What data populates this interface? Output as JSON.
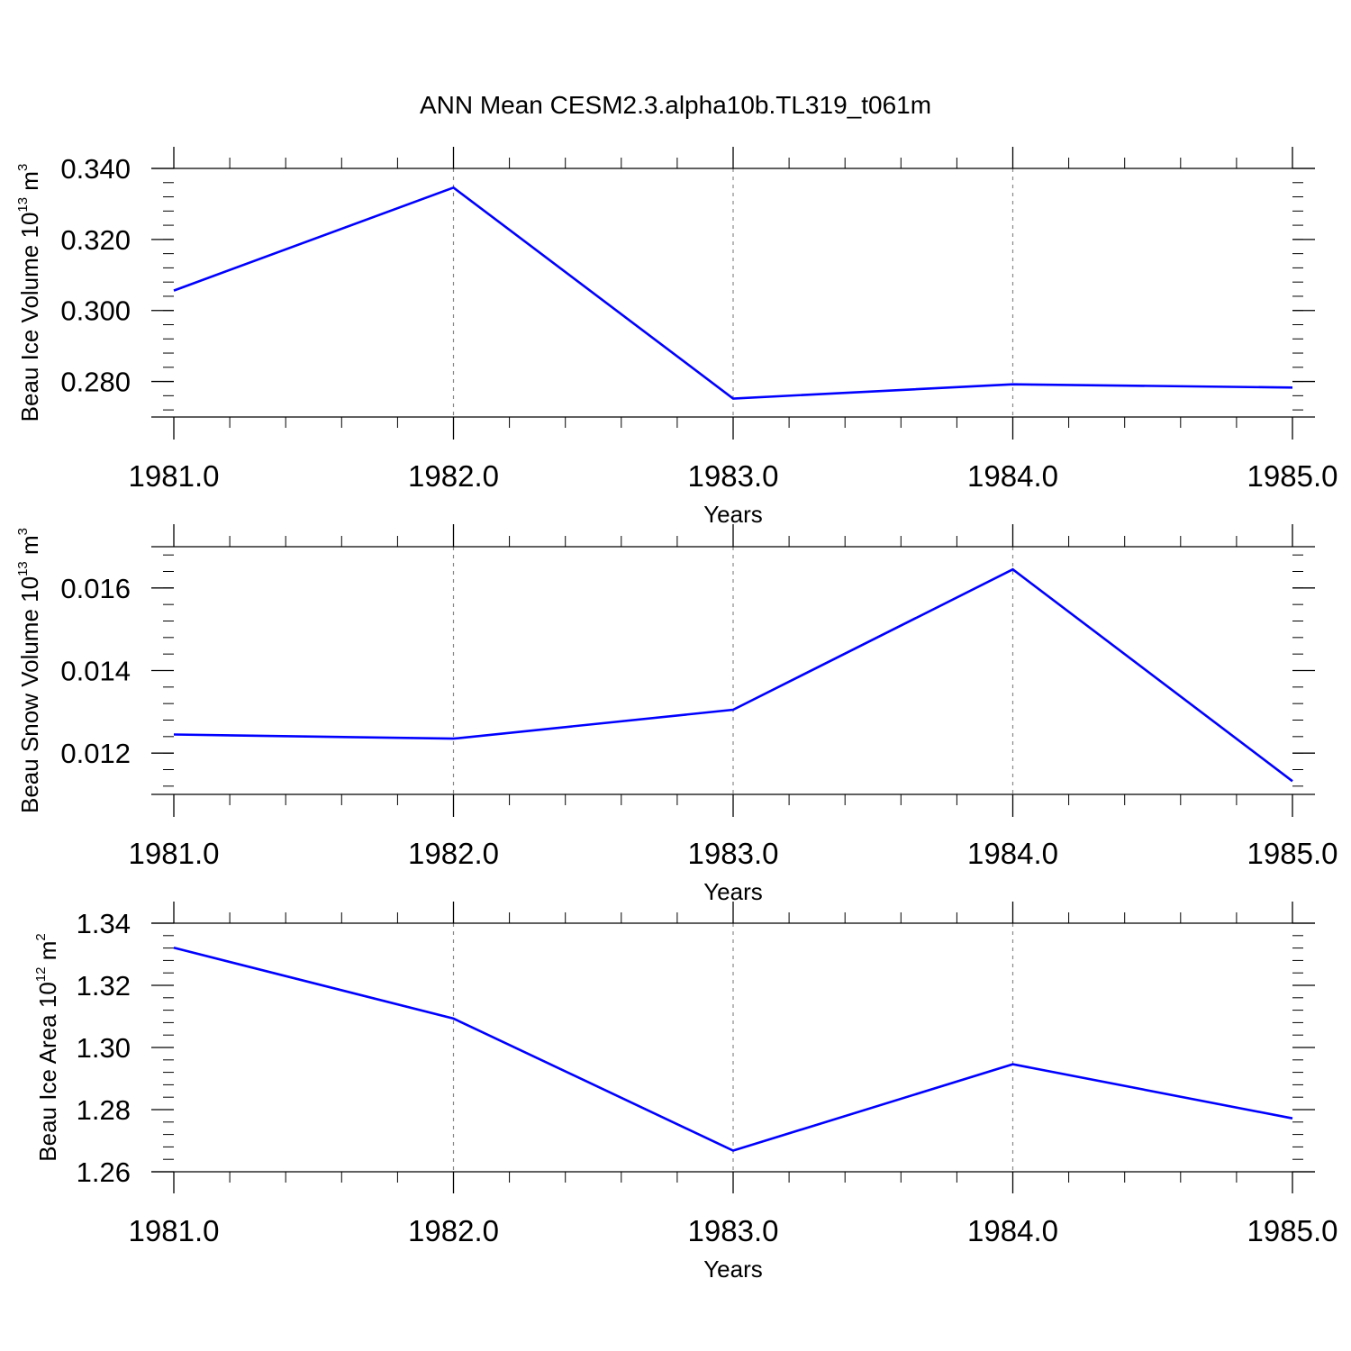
{
  "figure": {
    "title": "ANN Mean CESM2.3.alpha10b.TL319_t061m"
  },
  "colors": {
    "series": "#0000ff",
    "axis": "#000000",
    "grid": "#888888"
  },
  "chart_data": [
    {
      "type": "line",
      "ylabel_parts": [
        "Beau Ice Volume 10",
        "13",
        " m",
        "3"
      ],
      "xlabel": "Years",
      "x": [
        1981,
        1982,
        1983,
        1984,
        1985
      ],
      "x_tick_labels": [
        "1981.0",
        "1982.0",
        "1983.0",
        "1984.0",
        "1985.0"
      ],
      "y_ticks": [
        0.28,
        0.3,
        0.32,
        0.34
      ],
      "y_tick_labels": [
        "0.280",
        "0.300",
        "0.320",
        "0.340"
      ],
      "xlim": [
        1981,
        1985
      ],
      "ylim": [
        0.27,
        0.34
      ],
      "y_minor_step": 0.004,
      "grid": "vertical dashed at major x ticks",
      "series": [
        {
          "values": [
            0.3056,
            0.3346,
            0.2752,
            0.2792,
            0.2783
          ]
        }
      ]
    },
    {
      "type": "line",
      "ylabel_parts": [
        "Beau Snow Volume 10",
        "13",
        " m",
        "3"
      ],
      "xlabel": "Years",
      "x": [
        1981,
        1982,
        1983,
        1984,
        1985
      ],
      "x_tick_labels": [
        "1981.0",
        "1982.0",
        "1983.0",
        "1984.0",
        "1985.0"
      ],
      "y_ticks": [
        0.012,
        0.014,
        0.016
      ],
      "y_tick_labels": [
        "0.012",
        "0.014",
        "0.016"
      ],
      "xlim": [
        1981,
        1985
      ],
      "ylim": [
        0.011,
        0.017
      ],
      "y_minor_step": 0.0004,
      "grid": "vertical dashed at major x ticks",
      "series": [
        {
          "values": [
            0.01245,
            0.01235,
            0.01305,
            0.01645,
            0.01132
          ]
        }
      ]
    },
    {
      "type": "line",
      "ylabel_parts": [
        "Beau Ice Area 10",
        "12",
        " m",
        "2"
      ],
      "xlabel": "Years",
      "x": [
        1981,
        1982,
        1983,
        1984,
        1985
      ],
      "x_tick_labels": [
        "1981.0",
        "1982.0",
        "1983.0",
        "1984.0",
        "1985.0"
      ],
      "y_ticks": [
        1.26,
        1.28,
        1.3,
        1.32,
        1.34
      ],
      "y_tick_labels": [
        "1.26",
        "1.28",
        "1.30",
        "1.32",
        "1.34"
      ],
      "xlim": [
        1981,
        1985
      ],
      "ylim": [
        1.26,
        1.34
      ],
      "y_minor_step": 0.004,
      "grid": "vertical dashed at major x ticks",
      "series": [
        {
          "values": [
            1.3321,
            1.3093,
            1.2668,
            1.2946,
            1.2772
          ]
        }
      ]
    }
  ]
}
